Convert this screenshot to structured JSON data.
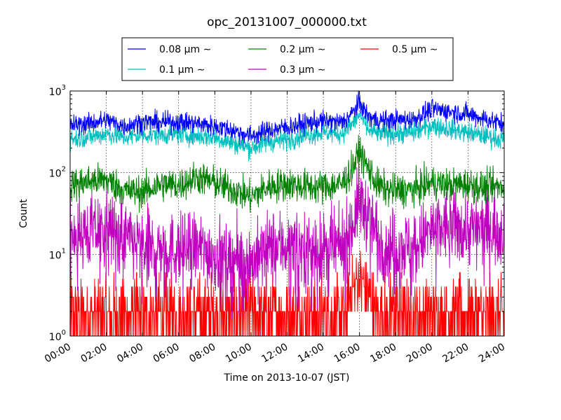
{
  "chart_data": {
    "type": "line",
    "title": "opc_20131007_000000.txt",
    "xlabel": "Time on 2013-10-07 (JST)",
    "ylabel": "Count",
    "yscale": "log",
    "ylim": [
      1,
      1000
    ],
    "xlim": [
      "00:00",
      "24:00"
    ],
    "grid": true,
    "legend_position": "top",
    "x_ticks": [
      "00:00",
      "02:00",
      "04:00",
      "06:00",
      "08:00",
      "10:00",
      "12:00",
      "14:00",
      "16:00",
      "18:00",
      "20:00",
      "22:00",
      "24:00"
    ],
    "y_ticks": [
      {
        "base": "10",
        "exp": "0"
      },
      {
        "base": "10",
        "exp": "1"
      },
      {
        "base": "10",
        "exp": "2"
      },
      {
        "base": "10",
        "exp": "3"
      }
    ],
    "x_hours": [
      0,
      1,
      2,
      3,
      4,
      5,
      6,
      7,
      8,
      9,
      10,
      11,
      12,
      13,
      14,
      15,
      15.5,
      16,
      16.5,
      17,
      17.5,
      18,
      19,
      20,
      21,
      22,
      23,
      24
    ],
    "series": [
      {
        "name": "0.08 μm ∼",
        "color": "#0000ff",
        "noise": 0.06,
        "values": [
          380,
          400,
          440,
          370,
          420,
          410,
          420,
          400,
          370,
          330,
          280,
          330,
          360,
          400,
          430,
          410,
          500,
          720,
          480,
          440,
          430,
          440,
          450,
          600,
          560,
          520,
          450,
          390
        ]
      },
      {
        "name": "0.1 μm ∼",
        "color": "#00bfbf",
        "noise": 0.06,
        "values": [
          260,
          270,
          300,
          270,
          290,
          290,
          300,
          280,
          270,
          230,
          200,
          240,
          250,
          290,
          310,
          300,
          370,
          520,
          330,
          300,
          300,
          300,
          310,
          380,
          340,
          310,
          280,
          250
        ]
      },
      {
        "name": "0.2 μm ∼",
        "color": "#008000",
        "noise": 0.1,
        "values": [
          70,
          78,
          82,
          60,
          58,
          72,
          70,
          88,
          75,
          62,
          50,
          68,
          72,
          68,
          66,
          72,
          100,
          180,
          110,
          70,
          62,
          60,
          62,
          75,
          70,
          72,
          65,
          68
        ]
      },
      {
        "name": "0.3 μm ∼",
        "color": "#bf00bf",
        "noise": 0.22,
        "values": [
          20,
          18,
          22,
          16,
          12,
          12,
          11,
          12,
          10,
          9,
          8,
          12,
          13,
          12,
          11,
          12,
          20,
          45,
          30,
          17,
          12,
          13,
          12,
          20,
          22,
          20,
          21,
          20
        ]
      },
      {
        "name": "0.5 μm ∼",
        "color": "#ff0000",
        "noise": 0.0,
        "values": [
          2,
          2,
          2,
          2,
          1.5,
          2,
          2,
          1.5,
          2,
          1.5,
          1.5,
          1.5,
          2,
          1.5,
          1.5,
          2,
          4,
          6,
          4,
          2.5,
          2,
          2,
          2,
          2.5,
          2.5,
          2,
          2,
          2
        ]
      }
    ]
  }
}
